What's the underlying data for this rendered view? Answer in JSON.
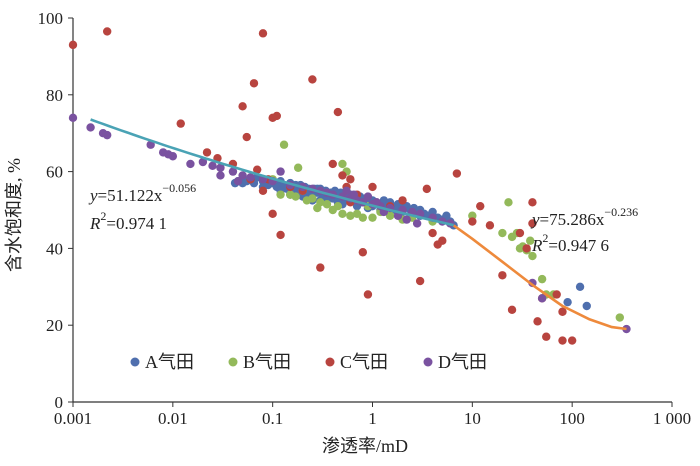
{
  "chart_data": {
    "type": "scatter",
    "xlabel": "渗透率/mD",
    "ylabel": "含水饱和度, %",
    "x_scale": "log",
    "xlim": [
      0.001,
      1000
    ],
    "ylim": [
      0,
      100
    ],
    "x_ticks": [
      0.001,
      0.01,
      0.1,
      1,
      10,
      100,
      1000
    ],
    "x_tick_labels": [
      "0.001",
      "0.01",
      "0.1",
      "1",
      "10",
      "100",
      "1 000"
    ],
    "y_ticks": [
      0,
      20,
      40,
      60,
      80,
      100
    ],
    "y_tick_labels": [
      "0",
      "20",
      "40",
      "60",
      "80",
      "100"
    ],
    "grid": false,
    "legend_position": "bottom-left",
    "colors": {
      "A": "#4f6fae",
      "B": "#93b95a",
      "C": "#b8443f",
      "D": "#7a52a0",
      "fit1": "#4aa3b5",
      "fit2": "#ee8a3c"
    },
    "series": [
      {
        "name": "A气田",
        "points": [
          [
            0.05,
            57
          ],
          [
            0.055,
            57.5
          ],
          [
            0.06,
            58
          ],
          [
            0.065,
            57
          ],
          [
            0.07,
            58.5
          ],
          [
            0.08,
            57.5
          ],
          [
            0.09,
            56.5
          ],
          [
            0.1,
            57
          ],
          [
            0.11,
            56
          ],
          [
            0.12,
            57.5
          ],
          [
            0.13,
            56.5
          ],
          [
            0.14,
            55.5
          ],
          [
            0.15,
            57
          ],
          [
            0.16,
            55
          ],
          [
            0.17,
            56.5
          ],
          [
            0.18,
            55.5
          ],
          [
            0.19,
            56.5
          ],
          [
            0.2,
            55
          ],
          [
            0.21,
            56
          ],
          [
            0.22,
            54.5
          ],
          [
            0.23,
            55.5
          ],
          [
            0.25,
            54
          ],
          [
            0.26,
            55.5
          ],
          [
            0.28,
            54.5
          ],
          [
            0.3,
            55.5
          ],
          [
            0.32,
            53.5
          ],
          [
            0.34,
            55
          ],
          [
            0.36,
            54
          ],
          [
            0.38,
            54.5
          ],
          [
            0.4,
            53
          ],
          [
            0.42,
            55
          ],
          [
            0.45,
            53.5
          ],
          [
            0.48,
            54.5
          ],
          [
            0.5,
            53
          ],
          [
            0.55,
            54
          ],
          [
            0.6,
            52.5
          ],
          [
            0.65,
            53.5
          ],
          [
            0.7,
            52.5
          ],
          [
            0.75,
            53.5
          ],
          [
            0.8,
            52
          ],
          [
            0.85,
            53
          ],
          [
            0.9,
            52.5
          ],
          [
            0.95,
            51.5
          ],
          [
            1.0,
            52.5
          ],
          [
            1.1,
            52
          ],
          [
            1.2,
            51.5
          ],
          [
            1.3,
            52.5
          ],
          [
            1.4,
            51
          ],
          [
            1.5,
            52
          ],
          [
            1.6,
            50.5
          ],
          [
            1.8,
            51.5
          ],
          [
            2.0,
            50.5
          ],
          [
            2.2,
            51
          ],
          [
            2.4,
            50
          ],
          [
            2.6,
            50.5
          ],
          [
            2.8,
            49.5
          ],
          [
            3.0,
            50
          ],
          [
            3.3,
            49
          ],
          [
            3.6,
            48.5
          ],
          [
            4.0,
            49.5
          ],
          [
            4.5,
            48
          ],
          [
            5.0,
            47.5
          ],
          [
            5.5,
            48.5
          ],
          [
            6.0,
            47
          ],
          [
            6.5,
            46
          ],
          [
            0.3,
            52.5
          ],
          [
            0.5,
            51.5
          ],
          [
            0.7,
            51
          ],
          [
            0.9,
            50.5
          ],
          [
            1.2,
            50
          ],
          [
            0.15,
            54
          ],
          [
            0.2,
            53.5
          ],
          [
            0.12,
            55
          ],
          [
            0.08,
            56
          ],
          [
            0.45,
            52
          ],
          [
            0.6,
            54
          ],
          [
            1.0,
            51
          ],
          [
            2.0,
            49.5
          ],
          [
            3.0,
            48.5
          ],
          [
            0.35,
            53
          ],
          [
            0.25,
            52.5
          ],
          [
            0.18,
            54.5
          ],
          [
            0.22,
            53
          ],
          [
            0.28,
            55.5
          ],
          [
            0.4,
            54.5
          ],
          [
            0.55,
            52.5
          ],
          [
            0.75,
            52
          ],
          [
            1.3,
            50.5
          ],
          [
            1.7,
            50
          ],
          [
            2.5,
            49
          ],
          [
            120,
            30
          ],
          [
            140,
            25
          ],
          [
            90,
            26
          ],
          [
            0.042,
            57
          ],
          [
            0.045,
            57.5
          ]
        ]
      },
      {
        "name": "B气田",
        "points": [
          [
            0.13,
            67
          ],
          [
            0.18,
            61
          ],
          [
            0.2,
            55
          ],
          [
            0.15,
            54
          ],
          [
            0.25,
            53
          ],
          [
            0.3,
            52
          ],
          [
            0.35,
            51.5
          ],
          [
            0.4,
            50
          ],
          [
            0.5,
            49
          ],
          [
            0.6,
            48.5
          ],
          [
            0.7,
            49
          ],
          [
            0.8,
            48
          ],
          [
            1.0,
            48
          ],
          [
            1.2,
            49.5
          ],
          [
            1.5,
            48.5
          ],
          [
            2.0,
            47.5
          ],
          [
            2.5,
            48
          ],
          [
            0.22,
            52.5
          ],
          [
            0.28,
            50.5
          ],
          [
            0.45,
            51
          ],
          [
            0.5,
            62
          ],
          [
            0.55,
            60
          ],
          [
            0.1,
            58
          ],
          [
            0.12,
            54
          ],
          [
            0.17,
            53.5
          ],
          [
            10,
            48.5
          ],
          [
            20,
            44
          ],
          [
            23,
            52
          ],
          [
            25,
            43
          ],
          [
            28,
            44
          ],
          [
            30,
            40
          ],
          [
            32,
            40.5
          ],
          [
            35,
            39.5
          ],
          [
            38,
            42
          ],
          [
            40,
            38
          ],
          [
            50,
            32
          ],
          [
            55,
            28
          ],
          [
            65,
            28
          ],
          [
            300,
            22
          ],
          [
            4,
            47
          ],
          [
            0.9,
            51
          ]
        ]
      },
      {
        "name": "C气田",
        "points": [
          [
            0.001,
            93
          ],
          [
            0.0022,
            96.5
          ],
          [
            0.012,
            72.5
          ],
          [
            0.022,
            65
          ],
          [
            0.028,
            63.5
          ],
          [
            0.04,
            62
          ],
          [
            0.05,
            77
          ],
          [
            0.055,
            69
          ],
          [
            0.06,
            58
          ],
          [
            0.065,
            83
          ],
          [
            0.07,
            60.5
          ],
          [
            0.08,
            96
          ],
          [
            0.08,
            55
          ],
          [
            0.09,
            58
          ],
          [
            0.1,
            74
          ],
          [
            0.11,
            74.5
          ],
          [
            0.1,
            49
          ],
          [
            0.12,
            43.5
          ],
          [
            0.15,
            56
          ],
          [
            0.2,
            55
          ],
          [
            0.25,
            84
          ],
          [
            0.3,
            35
          ],
          [
            0.4,
            62
          ],
          [
            0.45,
            75.5
          ],
          [
            0.5,
            59
          ],
          [
            0.55,
            56
          ],
          [
            0.6,
            58
          ],
          [
            0.6,
            52
          ],
          [
            0.7,
            54
          ],
          [
            0.8,
            39
          ],
          [
            0.9,
            28
          ],
          [
            1.0,
            56
          ],
          [
            1.5,
            51
          ],
          [
            2.0,
            52.5
          ],
          [
            3.0,
            31.5
          ],
          [
            3.5,
            55.5
          ],
          [
            4.0,
            44
          ],
          [
            4.5,
            41
          ],
          [
            5.0,
            42
          ],
          [
            7,
            59.5
          ],
          [
            10,
            47
          ],
          [
            12,
            51
          ],
          [
            15,
            46
          ],
          [
            20,
            33
          ],
          [
            25,
            24
          ],
          [
            30,
            44
          ],
          [
            35,
            40
          ],
          [
            40,
            46.5
          ],
          [
            40,
            52
          ],
          [
            45,
            21
          ],
          [
            50,
            27
          ],
          [
            55,
            17
          ],
          [
            70,
            28
          ],
          [
            80,
            23.5
          ],
          [
            80,
            16
          ],
          [
            100,
            16
          ]
        ]
      },
      {
        "name": "D气田",
        "points": [
          [
            0.001,
            74
          ],
          [
            0.0015,
            71.5
          ],
          [
            0.002,
            70
          ],
          [
            0.0022,
            69.5
          ],
          [
            0.006,
            67
          ],
          [
            0.008,
            65
          ],
          [
            0.01,
            64
          ],
          [
            0.02,
            62.5
          ],
          [
            0.025,
            61.5
          ],
          [
            0.03,
            61
          ],
          [
            0.04,
            60
          ],
          [
            0.05,
            59
          ],
          [
            0.06,
            58.5
          ],
          [
            0.08,
            58
          ],
          [
            0.1,
            57.5
          ],
          [
            0.15,
            56.5
          ],
          [
            0.2,
            56
          ],
          [
            0.25,
            55.5
          ],
          [
            0.3,
            55
          ],
          [
            0.35,
            54.5
          ],
          [
            0.4,
            54
          ],
          [
            0.5,
            53.5
          ],
          [
            0.6,
            53
          ],
          [
            0.7,
            52.5
          ],
          [
            0.8,
            52
          ],
          [
            1.0,
            51.5
          ],
          [
            1.2,
            51
          ],
          [
            1.5,
            50.5
          ],
          [
            2.0,
            50
          ],
          [
            2.5,
            49.5
          ],
          [
            3.0,
            49
          ],
          [
            4.0,
            48
          ],
          [
            5.0,
            47
          ],
          [
            6.0,
            46.5
          ],
          [
            0.015,
            62
          ],
          [
            0.009,
            64.5
          ],
          [
            0.03,
            59
          ],
          [
            0.045,
            57.5
          ],
          [
            0.55,
            55
          ],
          [
            0.65,
            54
          ],
          [
            0.9,
            53.5
          ],
          [
            1.1,
            52
          ],
          [
            1.3,
            49.5
          ],
          [
            1.8,
            48.5
          ],
          [
            2.2,
            47.5
          ],
          [
            2.8,
            46.5
          ],
          [
            350,
            19
          ],
          [
            40,
            31
          ],
          [
            50,
            27
          ],
          [
            0.12,
            60
          ]
        ]
      }
    ],
    "fits": [
      {
        "equation_y": "y",
        "equation_body": "=51.122x",
        "exponent": "−0.056",
        "r2_label": "R",
        "r2_value": "=0.974 1",
        "coef": 51.122,
        "power": -0.056,
        "x_range": [
          0.0015,
          6.5
        ]
      },
      {
        "equation_y": "y",
        "equation_body": "=75.286x",
        "exponent": "−0.236",
        "r2_label": "R",
        "r2_value": "=0.947 6",
        "x_range": [
          6.5,
          350
        ],
        "curve": [
          [
            6.5,
            46
          ],
          [
            10,
            42.5
          ],
          [
            20,
            36.5
          ],
          [
            40,
            30.5
          ],
          [
            80,
            25
          ],
          [
            150,
            21.5
          ],
          [
            250,
            19.5
          ],
          [
            350,
            19
          ]
        ]
      }
    ]
  }
}
